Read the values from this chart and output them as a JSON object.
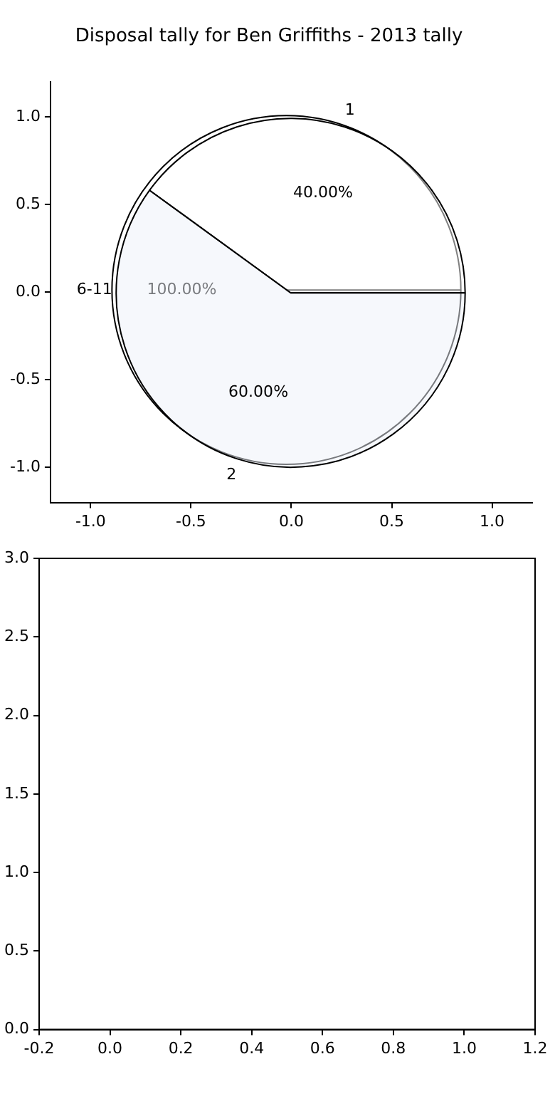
{
  "chart_data": [
    {
      "type": "scatter",
      "title": "Disposal tally for Ben Griffiths - 2013 tally",
      "xlim": [
        -1.2,
        1.2
      ],
      "xticks": [
        {
          "value": -1,
          "label": "-1.0"
        },
        {
          "value": -0.5,
          "label": "-0.5"
        },
        {
          "value": 0,
          "label": "0.0"
        },
        {
          "value": 0.5,
          "label": "0.5"
        },
        {
          "value": 1,
          "label": "1.0"
        }
      ],
      "ylim": [
        -1.2,
        1.2
      ],
      "yticks": [
        {
          "value": -1,
          "label": "-1.0"
        },
        {
          "value": -0.5,
          "label": "-0.5"
        },
        {
          "value": 0,
          "label": "0.0"
        },
        {
          "value": 0.5,
          "label": "0.5"
        },
        {
          "value": 1,
          "label": "1.0"
        }
      ]
    },
    {
      "type": "pie",
      "categories": [
        "1",
        "2"
      ],
      "values": [
        40,
        60
      ],
      "colors": [
        "#ffffff",
        "#eef2fa"
      ],
      "value_labels": [
        "40.00%",
        "60.00%"
      ]
    },
    {
      "type": "pie",
      "categories": [
        "6-11"
      ],
      "values": [
        100
      ],
      "colors": [
        "#ffffff"
      ],
      "value_labels": [
        "100.00%"
      ]
    },
    {
      "type": "scatter",
      "xlim": [
        -0.2,
        1.2
      ],
      "xticks": [
        {
          "value": -0.2,
          "label": "-0.2"
        },
        {
          "value": 0,
          "label": "0.0"
        },
        {
          "value": 0.2,
          "label": "0.2"
        },
        {
          "value": 0.4,
          "label": "0.4"
        },
        {
          "value": 0.6,
          "label": "0.6"
        },
        {
          "value": 0.8,
          "label": "0.8"
        },
        {
          "value": 1,
          "label": "1.0"
        },
        {
          "value": 1.2,
          "label": "1.2"
        }
      ],
      "ylim": [
        0,
        3
      ],
      "yticks": [
        {
          "value": 0,
          "label": "0.0"
        },
        {
          "value": 0.5,
          "label": "0.5"
        },
        {
          "value": 1,
          "label": "1.0"
        },
        {
          "value": 1.5,
          "label": "1.5"
        },
        {
          "value": 2,
          "label": "2.0"
        },
        {
          "value": 2.5,
          "label": "2.5"
        },
        {
          "value": 3,
          "label": "3.0"
        }
      ]
    }
  ]
}
